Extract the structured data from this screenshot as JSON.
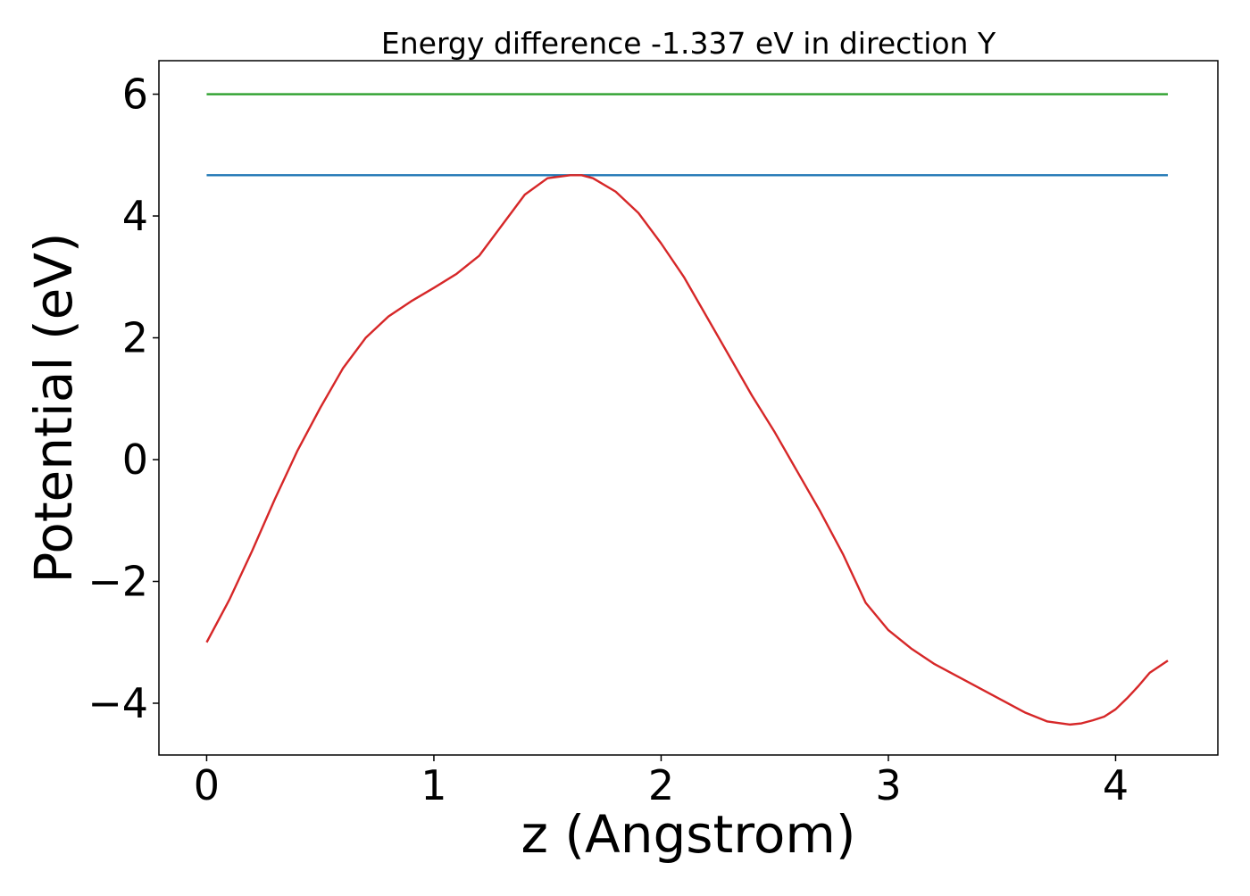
{
  "chart_data": {
    "type": "line",
    "title": "Energy difference -1.337 eV in direction Y",
    "xlabel": "z (Angstrom)",
    "ylabel": "Potential (eV)",
    "xlim": [
      -0.21,
      4.45
    ],
    "ylim": [
      -4.85,
      6.55
    ],
    "xticks": [
      0,
      1,
      2,
      3,
      4
    ],
    "yticks": [
      -4,
      -2,
      0,
      2,
      4,
      6
    ],
    "xtick_labels": [
      "0",
      "1",
      "2",
      "3",
      "4"
    ],
    "ytick_labels": [
      "−4",
      "−2",
      "0",
      "2",
      "4",
      "6"
    ],
    "grid": false,
    "legend": "none",
    "series": [
      {
        "color": "#2ca02c",
        "x": [
          0,
          4.23
        ],
        "y": [
          6.0,
          6.0
        ]
      },
      {
        "color": "#1f77b4",
        "x": [
          0,
          4.23
        ],
        "y": [
          4.67,
          4.67
        ]
      },
      {
        "color": "#d62728",
        "x": [
          0,
          0.1,
          0.2,
          0.3,
          0.4,
          0.5,
          0.6,
          0.7,
          0.8,
          0.9,
          1.0,
          1.1,
          1.2,
          1.3,
          1.4,
          1.5,
          1.6,
          1.65,
          1.7,
          1.8,
          1.9,
          2.0,
          2.1,
          2.2,
          2.3,
          2.4,
          2.5,
          2.6,
          2.7,
          2.8,
          2.9,
          3.0,
          3.05,
          3.1,
          3.2,
          3.3,
          3.4,
          3.5,
          3.6,
          3.7,
          3.8,
          3.85,
          3.9,
          3.95,
          4.0,
          4.05,
          4.1,
          4.15,
          4.23
        ],
        "y": [
          -3.0,
          -2.3,
          -1.5,
          -0.65,
          0.15,
          0.85,
          1.5,
          2.0,
          2.35,
          2.6,
          2.82,
          3.05,
          3.35,
          3.85,
          4.35,
          4.62,
          4.67,
          4.67,
          4.62,
          4.4,
          4.05,
          3.55,
          3.0,
          2.35,
          1.7,
          1.05,
          0.45,
          -0.2,
          -0.85,
          -1.55,
          -2.35,
          -2.8,
          -2.95,
          -3.1,
          -3.35,
          -3.55,
          -3.75,
          -3.95,
          -4.15,
          -4.3,
          -4.35,
          -4.33,
          -4.28,
          -4.22,
          -4.1,
          -3.92,
          -3.72,
          -3.5,
          -3.3
        ]
      }
    ]
  }
}
